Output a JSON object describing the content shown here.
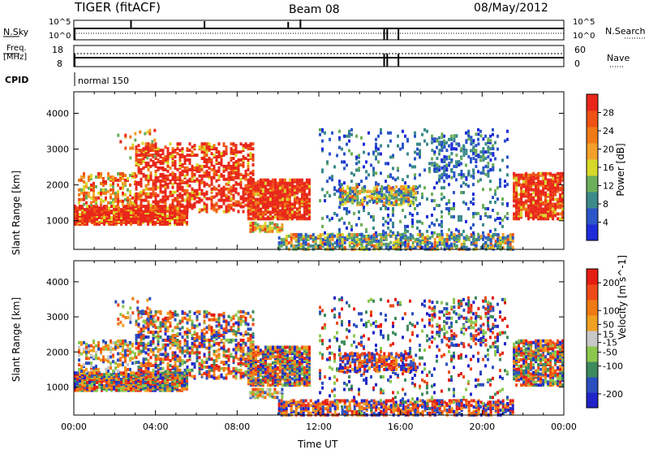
{
  "header": {
    "title": "TIGER (fitACF)",
    "beam": "Beam 08",
    "date": "08/May/2012"
  },
  "top_panels": {
    "nsky": {
      "label": "N.Sky",
      "ticks": [
        "10^5",
        "10^0"
      ],
      "right_ticks": [
        "10^5",
        "10^0"
      ],
      "right_label": "N.Search"
    },
    "freq": {
      "label_line1": "Freq.",
      "label_line2": "[MHz]",
      "ticks": [
        "18",
        "8"
      ],
      "right_ticks": [
        "60",
        "0"
      ],
      "right_label": "Nave"
    },
    "cpid": {
      "label": "CPID",
      "value": "normal 150"
    }
  },
  "colors": {
    "power_scale": [
      "#1e2bd8",
      "#2b55c8",
      "#3c8a8a",
      "#6cae5a",
      "#d8d82a",
      "#f2a02a",
      "#f07a16",
      "#ee5214",
      "#e8271a"
    ],
    "velocity_scale": [
      "#2124c9",
      "#2c4fbf",
      "#3d8a5e",
      "#8cc850",
      "#c8c8c8",
      "#f0a020",
      "#ef7a13",
      "#ee4a17",
      "#e41e12"
    ]
  },
  "chart_data": [
    {
      "type": "heatmap",
      "title": "",
      "xlabel": "Time UT",
      "ylabel": "Slant Range [km]",
      "x_ticks": [
        "00:00",
        "04:00",
        "08:00",
        "12:00",
        "16:00",
        "20:00",
        "00:00"
      ],
      "xlim_hours": [
        0,
        24
      ],
      "y_ticks": [
        1000,
        2000,
        3000,
        4000
      ],
      "ylim": [
        200,
        4600
      ],
      "colorbar": {
        "label": "Power [dB]",
        "ticks": [
          4,
          8,
          12,
          16,
          20,
          24,
          28
        ],
        "range": [
          0,
          32
        ]
      }
    },
    {
      "type": "heatmap",
      "title": "",
      "xlabel": "Time UT",
      "ylabel": "Slant Range [km]",
      "x_ticks": [
        "00:00",
        "04:00",
        "08:00",
        "12:00",
        "16:00",
        "20:00",
        "00:00"
      ],
      "xlim_hours": [
        0,
        24
      ],
      "y_ticks": [
        1000,
        2000,
        3000,
        4000
      ],
      "ylim": [
        200,
        4600
      ],
      "colorbar": {
        "label": "Velocity [m s^-1]",
        "ticks": [
          -200,
          -100,
          -50,
          -15,
          15,
          50,
          100,
          200
        ],
        "range": [
          -250,
          250
        ]
      }
    }
  ]
}
